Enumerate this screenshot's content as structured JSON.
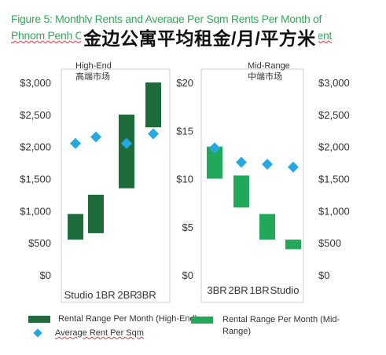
{
  "title_line1": "Figure 5: Monthly Rents and Average Per Sqm Rents Per Month of",
  "title_line2": "Phnom Penh Condominiums by Bedroom Type and Market Segment",
  "title_cn": "金边公寓平均租金/月/平方米",
  "colors": {
    "high_end_bar": "#1e6b3c",
    "mid_range_bar": "#22a85a",
    "average_marker": "#26a9e0",
    "axis_text": "#333333",
    "panel_border": "#cfcfcf"
  },
  "legend": {
    "high_end_range": "Rental Range Per Month (High-End)",
    "mid_range_range": "Rental Range Per Month (Mid-Range)",
    "average_per_sqm": "Average Rent Per Sqm"
  },
  "chart_data": [
    {
      "type": "bar",
      "subtype": "floating-range-with-markers",
      "panel_label": "High-End",
      "panel_label_cn": "高端市场",
      "categories": [
        "Studio",
        "1BR",
        "2BR",
        "3BR"
      ],
      "range_axis": {
        "ylim": [
          0,
          3000
        ],
        "ticks": [
          "$0",
          "$500",
          "$1,000",
          "$1,500",
          "$2,000",
          "$2,500",
          "$3,000"
        ],
        "tick_values": [
          0,
          500,
          1000,
          1500,
          2000,
          2500,
          3000
        ]
      },
      "ranges": [
        [
          550,
          950
        ],
        [
          650,
          1250
        ],
        [
          1350,
          2500
        ],
        [
          2300,
          3000
        ]
      ],
      "average_per_sqm": [
        2050,
        2150,
        2050,
        2200
      ]
    },
    {
      "type": "bar",
      "subtype": "floating-range-with-markers",
      "panel_label": "Mid-Range",
      "panel_label_cn": "中端市场",
      "categories": [
        "3BR",
        "2BR",
        "1BR",
        "Studio"
      ],
      "left_axis": {
        "ylim": [
          0,
          20
        ],
        "ticks": [
          "$0",
          "$5",
          "$10",
          "$15",
          "$20"
        ],
        "tick_values": [
          0,
          5,
          10,
          15,
          20
        ],
        "series": "Average Rent Per Sqm"
      },
      "right_axis": {
        "ylim": [
          0,
          3000
        ],
        "ticks": [
          "$0",
          "$500",
          "$1,000",
          "$1,500",
          "$2,000",
          "$2,500",
          "$3,000"
        ],
        "tick_values": [
          0,
          500,
          1000,
          1500,
          2000,
          2500,
          3000
        ],
        "series": "Rental Range Per Month (Mid-Range)"
      },
      "ranges": [
        [
          1500,
          2000
        ],
        [
          1050,
          1550
        ],
        [
          550,
          950
        ],
        [
          400,
          550
        ]
      ],
      "average_per_sqm": [
        13.2,
        11.7,
        11.5,
        11.2
      ]
    }
  ]
}
